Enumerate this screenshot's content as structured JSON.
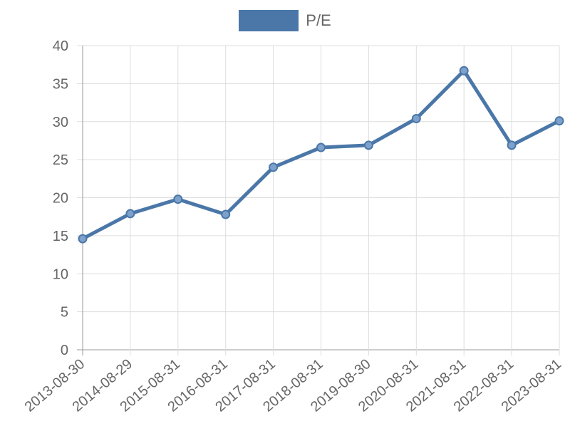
{
  "chart_data": {
    "type": "line",
    "categories": [
      "2013-08-30",
      "2014-08-29",
      "2015-08-31",
      "2016-08-31",
      "2017-08-31",
      "2018-08-31",
      "2019-08-30",
      "2020-08-31",
      "2021-08-31",
      "2022-08-31",
      "2023-08-31"
    ],
    "series": [
      {
        "name": "P/E",
        "values": [
          14.6,
          17.9,
          19.8,
          17.8,
          24.0,
          26.6,
          26.9,
          30.4,
          36.7,
          26.9,
          30.1
        ]
      }
    ],
    "ylim": [
      0,
      40
    ],
    "yticks": [
      0,
      5,
      10,
      15,
      20,
      25,
      30,
      35,
      40
    ],
    "grid": true,
    "legend_position": "top",
    "colors": {
      "line": "#4a77a8",
      "marker_fill": "#7ea1cc",
      "grid": "#dddddd",
      "axis": "#999999",
      "text": "#666666"
    }
  }
}
